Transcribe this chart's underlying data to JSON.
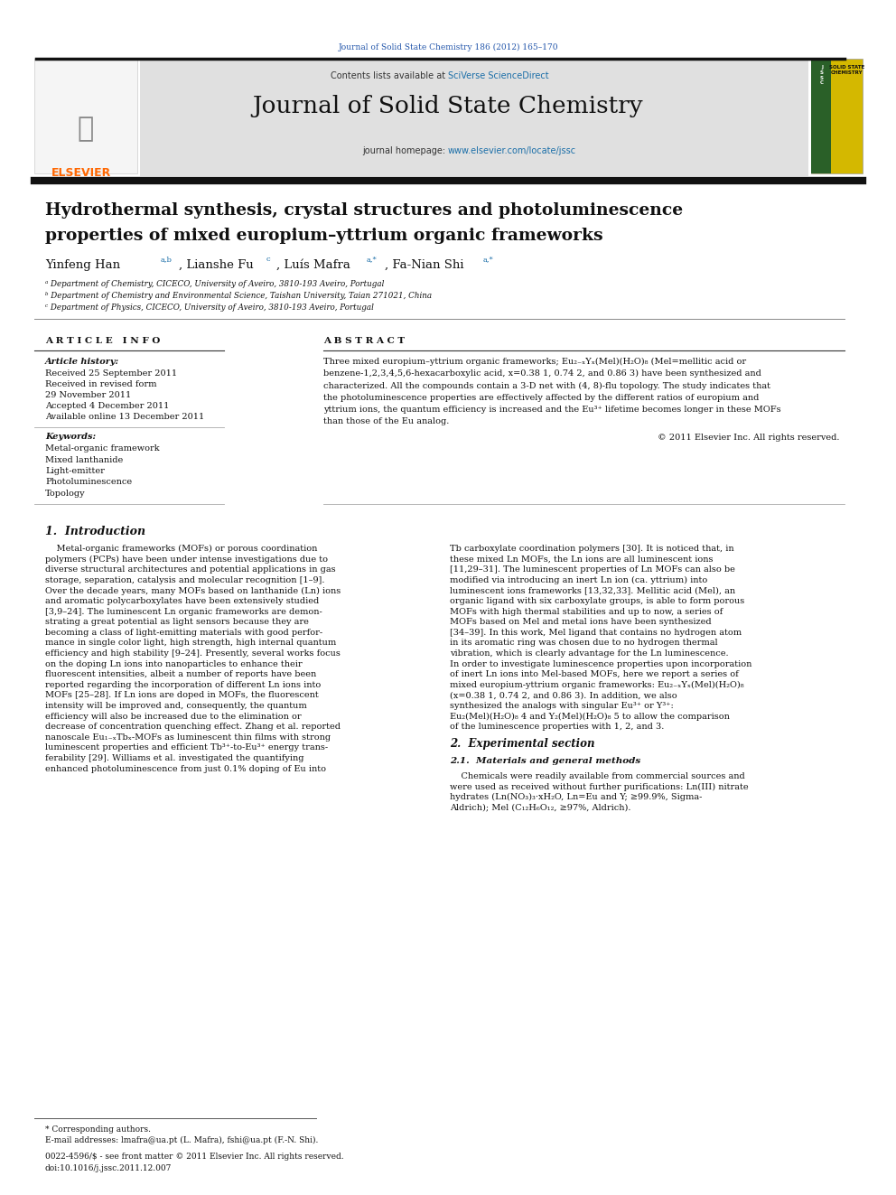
{
  "page_width": 9.92,
  "page_height": 13.23,
  "bg_color": "#ffffff",
  "journal_ref": "Journal of Solid State Chemistry 186 (2012) 165–170",
  "sciverse_color": "#1a6ea8",
  "elsevier_color": "#ff6600",
  "keywords": [
    "Metal-organic framework",
    "Mixed lanthanide",
    "Light-emitter",
    "Photoluminescence",
    "Topology"
  ],
  "intro_left": [
    "    Metal-organic frameworks (MOFs) or porous coordination",
    "polymers (PCPs) have been under intense investigations due to",
    "diverse structural architectures and potential applications in gas",
    "storage, separation, catalysis and molecular recognition [1–9].",
    "Over the decade years, many MOFs based on lanthanide (Ln) ions",
    "and aromatic polycarboxylates have been extensively studied",
    "[3,9–24]. The luminescent Ln organic frameworks are demon-",
    "strating a great potential as light sensors because they are",
    "becoming a class of light-emitting materials with good perfor-",
    "mance in single color light, high strength, high internal quantum",
    "efficiency and high stability [9–24]. Presently, several works focus",
    "on the doping Ln ions into nanoparticles to enhance their",
    "fluorescent intensities, albeit a number of reports have been",
    "reported regarding the incorporation of different Ln ions into",
    "MOFs [25–28]. If Ln ions are doped in MOFs, the fluorescent",
    "intensity will be improved and, consequently, the quantum",
    "efficiency will also be increased due to the elimination or",
    "decrease of concentration quenching effect. Zhang et al. reported",
    "nanoscale Eu₁₋ₓTbₓ-MOFs as luminescent thin films with strong",
    "luminescent properties and efficient Tb³⁺-to-Eu³⁺ energy trans-",
    "ferability [29]. Williams et al. investigated the quantifying",
    "enhanced photoluminescence from just 0.1% doping of Eu into"
  ],
  "intro_right": [
    "Tb carboxylate coordination polymers [30]. It is noticed that, in",
    "these mixed Ln MOFs, the Ln ions are all luminescent ions",
    "[11,29–31]. The luminescent properties of Ln MOFs can also be",
    "modified via introducing an inert Ln ion (ca. yttrium) into",
    "luminescent ions frameworks [13,32,33]. Mellitic acid (Mel), an",
    "organic ligand with six carboxylate groups, is able to form porous",
    "MOFs with high thermal stabilities and up to now, a series of",
    "MOFs based on Mel and metal ions have been synthesized",
    "[34–39]. In this work, Mel ligand that contains no hydrogen atom",
    "in its aromatic ring was chosen due to no hydrogen thermal",
    "vibration, which is clearly advantage for the Ln luminescence.",
    "In order to investigate luminescence properties upon incorporation",
    "of inert Ln ions into Mel-based MOFs, here we report a series of",
    "mixed europium-yttrium organic frameworks: Eu₂₋ₓYₓ(Mel)(H₂O)₈",
    "(x=0.38 1, 0.74 2, and 0.86 3). In addition, we also",
    "synthesized the analogs with singular Eu³⁺ or Y³⁺:",
    "Eu₂(Mel)(H₂O)₈ 4 and Y₂(Mel)(H₂O)₈ 5 to allow the comparison",
    "of the luminescence properties with 1, 2, and 3."
  ],
  "abstract_lines": [
    "Three mixed europium–yttrium organic frameworks; Eu₂₋ₓYₓ(Mel)(H₂O)₈ (Mel=mellitic acid or",
    "benzene-1,2,3,4,5,6-hexacarboxylic acid, x=0.38 1, 0.74 2, and 0.86 3) have been synthesized and",
    "characterized. All the compounds contain a 3-D net with (4, 8)-flu topology. The study indicates that",
    "the photoluminescence properties are effectively affected by the different ratios of europium and",
    "yttrium ions, the quantum efficiency is increased and the Eu³⁺ lifetime becomes longer in these MOFs",
    "than those of the Eu analog."
  ],
  "exp_lines": [
    "    Chemicals were readily available from commercial sources and",
    "were used as received without further purifications: Ln(III) nitrate",
    "hydrates (Ln(NO₃)₃·xH₂O, Ln=Eu and Y; ≥99.9%, Sigma-",
    "Aldrich); Mel (C₁₂H₆O₁₂, ≥97%, Aldrich)."
  ]
}
